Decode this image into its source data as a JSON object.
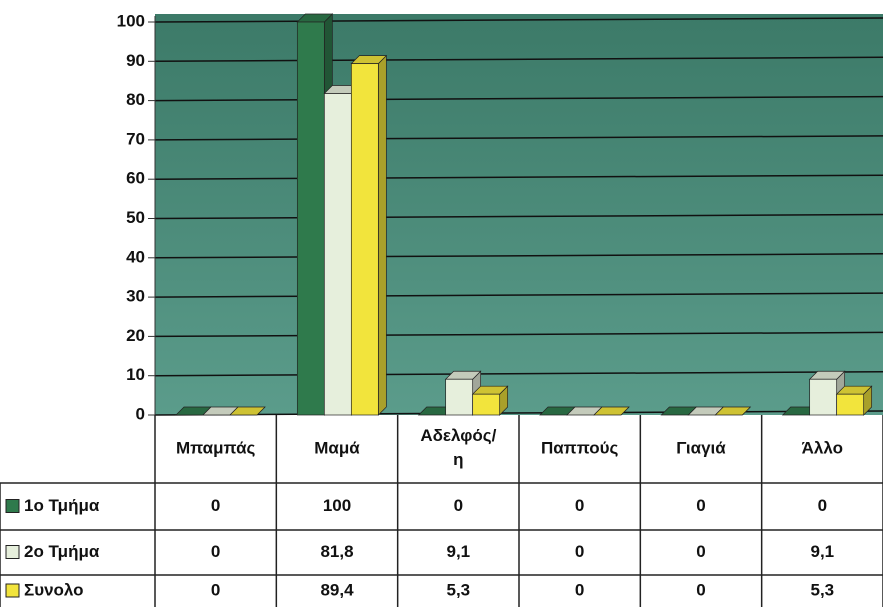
{
  "chart_data": {
    "type": "bar",
    "categories": [
      "Μπαμπάς",
      "Μαμά",
      "Αδελφός/η",
      "Παππούς",
      "Γιαγιά",
      "Άλλο"
    ],
    "series": [
      {
        "name": "1ο Τμήμα",
        "color": "#2f7a4c",
        "values": [
          0,
          100,
          0,
          0,
          0,
          0
        ],
        "value_labels": [
          "0",
          "100",
          "0",
          "0",
          "0",
          "0"
        ]
      },
      {
        "name": "2ο Τμήμα",
        "color": "#e6efdc",
        "values": [
          0,
          81.8,
          9.1,
          0,
          0,
          9.1
        ],
        "value_labels": [
          "0",
          "81,8",
          "9,1",
          "0",
          "0",
          "9,1"
        ]
      },
      {
        "name": "Συνολο",
        "color": "#f2e43c",
        "values": [
          0,
          89.4,
          5.3,
          0,
          0,
          5.3
        ],
        "value_labels": [
          "0",
          "89,4",
          "5,3",
          "0",
          "0",
          "5,3"
        ]
      }
    ],
    "ylim": [
      0,
      100
    ],
    "yticks": [
      0,
      10,
      20,
      30,
      40,
      50,
      60,
      70,
      80,
      90,
      100
    ],
    "grid": true
  }
}
